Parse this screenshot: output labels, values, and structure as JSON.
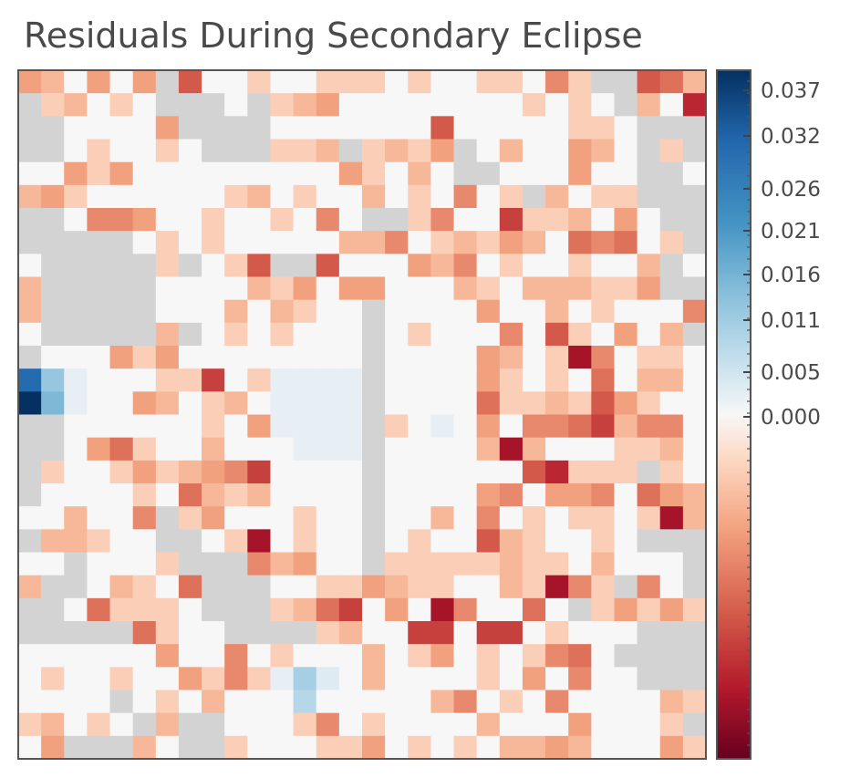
{
  "chart_data": {
    "type": "heatmap",
    "title": "Residuals During Secondary Eclipse",
    "nrows": 30,
    "ncols": 30,
    "colormap": "RdBu",
    "masked_color": "#d3d3d3",
    "colorbar": {
      "orientation": "vertical",
      "placement": "right",
      "ticks": [
        0.0,
        0.005,
        0.011,
        0.016,
        0.021,
        0.026,
        0.032,
        0.037
      ],
      "tick_labels": [
        "0.000",
        "0.005",
        "0.011",
        "0.016",
        "0.021",
        "0.026",
        "0.032",
        "0.037"
      ],
      "scale": "symlog"
    },
    "legend": "null = masked pixel (gray); values are estimated residuals",
    "values": [
      [
        -0.004,
        -0.003,
        0.0,
        -0.004,
        0.0,
        -0.004,
        null,
        -0.007,
        0.0,
        0.0,
        -0.002,
        0.0,
        0.0,
        -0.002,
        -0.002,
        -0.002,
        0.0,
        -0.002,
        0.0,
        0.0,
        -0.002,
        -0.002,
        0.0,
        -0.005,
        -0.002,
        null,
        null,
        -0.007,
        -0.006,
        -0.003
      ],
      [
        null,
        -0.002,
        -0.003,
        0.0,
        -0.002,
        0.0,
        null,
        null,
        null,
        0.0,
        null,
        -0.002,
        -0.003,
        -0.004,
        0.0,
        0.0,
        0.0,
        0.0,
        0.0,
        0.0,
        0.0,
        0.0,
        -0.002,
        0.0,
        -0.002,
        0.0,
        null,
        -0.003,
        0.0,
        -0.009
      ],
      [
        null,
        null,
        0.0,
        0.0,
        0.0,
        0.0,
        -0.004,
        null,
        null,
        null,
        null,
        0.0,
        0.0,
        0.0,
        0.0,
        0.0,
        0.0,
        0.0,
        -0.007,
        0.0,
        0.0,
        0.0,
        0.0,
        0.0,
        -0.002,
        -0.002,
        0.0,
        null,
        null,
        null
      ],
      [
        null,
        null,
        0.0,
        -0.002,
        0.0,
        0.0,
        -0.002,
        0.0,
        null,
        null,
        null,
        -0.002,
        -0.002,
        -0.003,
        null,
        -0.002,
        -0.003,
        -0.002,
        -0.004,
        null,
        0.0,
        -0.003,
        0.0,
        0.0,
        -0.004,
        -0.003,
        0.0,
        null,
        -0.002,
        null
      ],
      [
        0.0,
        0.0,
        -0.004,
        -0.002,
        -0.004,
        0.0,
        0.0,
        0.0,
        0.0,
        0.0,
        0.0,
        0.0,
        0.0,
        0.0,
        -0.004,
        -0.002,
        0.0,
        -0.003,
        0.0,
        null,
        null,
        0.0,
        0.0,
        0.0,
        -0.004,
        0.0,
        0.0,
        null,
        null,
        0.0
      ],
      [
        -0.003,
        -0.004,
        -0.002,
        0.0,
        0.0,
        0.0,
        0.0,
        0.0,
        0.0,
        -0.002,
        -0.003,
        0.0,
        -0.002,
        0.0,
        0.0,
        -0.003,
        0.0,
        -0.002,
        0.0,
        -0.005,
        0.0,
        -0.002,
        null,
        -0.003,
        0.0,
        -0.002,
        -0.002,
        null,
        null,
        null
      ],
      [
        null,
        null,
        0.0,
        -0.005,
        -0.005,
        -0.004,
        0.0,
        0.0,
        -0.002,
        0.0,
        0.0,
        -0.002,
        0.0,
        -0.005,
        0.0,
        null,
        null,
        -0.002,
        -0.005,
        0.0,
        0.0,
        -0.008,
        -0.002,
        -0.002,
        -0.003,
        0.0,
        -0.004,
        0.0,
        null,
        null
      ],
      [
        null,
        null,
        null,
        null,
        null,
        0.0,
        -0.002,
        0.0,
        -0.002,
        0.0,
        0.0,
        0.0,
        0.0,
        0.0,
        -0.003,
        -0.003,
        -0.005,
        0.0,
        -0.002,
        -0.003,
        -0.002,
        -0.004,
        -0.003,
        0.0,
        -0.006,
        -0.005,
        -0.006,
        0.0,
        -0.002,
        null
      ],
      [
        0.0,
        null,
        null,
        null,
        null,
        null,
        -0.002,
        null,
        0.0,
        -0.002,
        -0.007,
        null,
        null,
        -0.007,
        0.0,
        0.0,
        0.0,
        -0.004,
        -0.003,
        -0.005,
        0.0,
        -0.002,
        0.0,
        0.0,
        -0.002,
        0.0,
        0.0,
        -0.003,
        null,
        0.0
      ],
      [
        -0.003,
        null,
        null,
        null,
        null,
        null,
        0.0,
        0.0,
        0.0,
        0.0,
        -0.003,
        -0.002,
        -0.004,
        0.0,
        -0.004,
        -0.004,
        0.0,
        0.0,
        0.0,
        -0.003,
        -0.002,
        0.0,
        -0.003,
        -0.003,
        -0.003,
        -0.002,
        -0.002,
        -0.004,
        null,
        null
      ],
      [
        -0.003,
        null,
        null,
        null,
        null,
        null,
        0.0,
        0.0,
        0.0,
        -0.003,
        0.0,
        -0.003,
        -0.002,
        0.0,
        0.0,
        null,
        0.0,
        0.0,
        0.0,
        0.0,
        -0.004,
        0.0,
        0.0,
        -0.003,
        0.0,
        -0.002,
        0.0,
        0.0,
        0.0,
        -0.005
      ],
      [
        0.0,
        null,
        null,
        null,
        null,
        null,
        -0.003,
        null,
        0.0,
        -0.002,
        0.0,
        -0.002,
        0.0,
        0.0,
        0.0,
        null,
        0.0,
        -0.002,
        0.0,
        0.0,
        0.0,
        -0.005,
        0.0,
        -0.007,
        -0.002,
        0.0,
        -0.004,
        0.0,
        -0.003,
        null
      ],
      [
        null,
        0.0,
        0.0,
        0.0,
        -0.004,
        -0.002,
        -0.004,
        0.0,
        0.0,
        0.0,
        0.0,
        0.0,
        0.0,
        0.0,
        0.0,
        null,
        0.0,
        0.0,
        0.0,
        0.0,
        -0.004,
        -0.003,
        0.0,
        -0.002,
        -0.01,
        -0.005,
        0.0,
        -0.002,
        -0.002,
        0.0
      ],
      [
        0.03,
        0.012,
        0.002,
        0.0,
        0.0,
        0.0,
        -0.002,
        -0.002,
        -0.008,
        0.0,
        -0.002,
        0.002,
        0.002,
        0.002,
        0.002,
        null,
        0.0,
        0.0,
        0.0,
        0.0,
        -0.004,
        -0.002,
        0.0,
        -0.002,
        0.0,
        -0.006,
        0.0,
        -0.003,
        -0.003,
        0.0
      ],
      [
        0.04,
        0.015,
        0.002,
        0.0,
        0.0,
        -0.004,
        -0.003,
        0.0,
        -0.002,
        -0.003,
        0.0,
        0.002,
        0.002,
        0.002,
        0.002,
        null,
        0.0,
        0.0,
        0.0,
        0.0,
        -0.006,
        -0.002,
        -0.002,
        -0.003,
        -0.002,
        -0.007,
        -0.004,
        -0.002,
        0.0,
        0.0
      ],
      [
        null,
        null,
        0.0,
        0.0,
        0.0,
        0.0,
        0.0,
        0.0,
        -0.002,
        0.0,
        -0.004,
        0.002,
        0.002,
        0.002,
        0.002,
        null,
        -0.002,
        0.0,
        0.002,
        0.0,
        -0.004,
        0.0,
        -0.005,
        -0.005,
        -0.006,
        -0.008,
        -0.003,
        -0.005,
        -0.005,
        0.0
      ],
      [
        null,
        null,
        0.0,
        -0.004,
        -0.006,
        -0.002,
        0.0,
        0.0,
        -0.003,
        0.0,
        0.0,
        0.0,
        0.002,
        0.002,
        0.002,
        null,
        0.0,
        0.0,
        0.0,
        0.0,
        -0.003,
        -0.01,
        -0.003,
        0.0,
        0.0,
        0.0,
        -0.002,
        -0.002,
        -0.003,
        0.0
      ],
      [
        null,
        -0.002,
        0.0,
        0.0,
        -0.002,
        -0.004,
        -0.002,
        -0.003,
        -0.004,
        -0.005,
        -0.008,
        0.0,
        0.0,
        0.0,
        0.0,
        null,
        0.0,
        0.0,
        0.0,
        0.0,
        0.0,
        0.0,
        -0.007,
        -0.009,
        -0.002,
        -0.002,
        -0.002,
        null,
        -0.002,
        0.0
      ],
      [
        null,
        0.0,
        0.0,
        0.0,
        0.0,
        -0.002,
        0.0,
        -0.006,
        -0.003,
        -0.002,
        -0.003,
        0.0,
        0.0,
        0.0,
        0.0,
        null,
        0.0,
        0.0,
        0.0,
        0.0,
        -0.004,
        -0.005,
        0.0,
        -0.004,
        -0.004,
        -0.005,
        0.0,
        -0.006,
        -0.004,
        -0.003
      ],
      [
        0.0,
        0.0,
        -0.003,
        0.0,
        0.0,
        -0.005,
        null,
        -0.002,
        -0.004,
        0.0,
        0.0,
        0.0,
        -0.002,
        0.0,
        0.0,
        null,
        0.0,
        0.0,
        -0.003,
        0.0,
        -0.005,
        0.0,
        -0.002,
        0.0,
        -0.002,
        -0.002,
        0.0,
        -0.002,
        -0.01,
        -0.003
      ],
      [
        null,
        -0.003,
        -0.003,
        -0.002,
        0.0,
        0.0,
        null,
        null,
        0.0,
        -0.002,
        -0.01,
        0.0,
        -0.002,
        0.0,
        0.0,
        null,
        0.0,
        -0.002,
        0.0,
        0.0,
        -0.007,
        -0.003,
        -0.002,
        0.0,
        0.0,
        -0.002,
        0.0,
        null,
        null,
        null
      ],
      [
        0.0,
        0.0,
        null,
        0.0,
        0.0,
        0.0,
        -0.002,
        null,
        null,
        null,
        -0.005,
        -0.003,
        -0.004,
        0.0,
        0.0,
        null,
        -0.002,
        -0.002,
        -0.002,
        -0.002,
        -0.002,
        -0.003,
        -0.002,
        -0.002,
        0.0,
        -0.003,
        0.0,
        0.0,
        0.0,
        null
      ],
      [
        -0.003,
        null,
        null,
        0.0,
        -0.003,
        -0.002,
        0.0,
        -0.006,
        null,
        null,
        null,
        0.0,
        0.0,
        -0.002,
        -0.002,
        -0.004,
        -0.003,
        -0.002,
        -0.002,
        0.0,
        0.0,
        -0.003,
        -0.002,
        -0.01,
        -0.005,
        -0.002,
        null,
        -0.005,
        0.0,
        null
      ],
      [
        null,
        null,
        0.0,
        -0.006,
        -0.002,
        -0.002,
        -0.002,
        0.0,
        null,
        null,
        null,
        -0.002,
        -0.003,
        -0.006,
        -0.008,
        0.0,
        -0.004,
        0.0,
        -0.01,
        -0.005,
        0.0,
        0.0,
        -0.006,
        0.0,
        null,
        -0.002,
        -0.004,
        -0.002,
        -0.004,
        -0.002
      ],
      [
        null,
        null,
        null,
        null,
        null,
        -0.006,
        -0.002,
        0.0,
        0.0,
        null,
        null,
        null,
        null,
        -0.002,
        -0.003,
        0.0,
        0.0,
        -0.008,
        -0.008,
        0.0,
        -0.008,
        -0.008,
        0.0,
        -0.002,
        0.0,
        0.0,
        0.0,
        null,
        null,
        null
      ],
      [
        0.0,
        0.0,
        0.0,
        0.0,
        0.0,
        0.0,
        -0.004,
        0.0,
        0.0,
        -0.005,
        0.0,
        -0.002,
        0.0,
        0.0,
        0.0,
        -0.003,
        0.0,
        -0.002,
        -0.004,
        0.0,
        -0.002,
        0.0,
        -0.002,
        -0.005,
        -0.006,
        0.0,
        null,
        null,
        null,
        null
      ],
      [
        0.0,
        -0.002,
        0.0,
        0.0,
        -0.002,
        0.0,
        0.0,
        -0.004,
        -0.002,
        -0.005,
        -0.002,
        0.002,
        0.01,
        0.003,
        0.0,
        -0.003,
        0.0,
        0.0,
        0.0,
        0.0,
        -0.002,
        0.0,
        -0.004,
        0.0,
        -0.005,
        0.0,
        0.0,
        null,
        null,
        null
      ],
      [
        0.0,
        0.0,
        0.0,
        0.0,
        null,
        0.0,
        -0.002,
        0.0,
        -0.003,
        0.0,
        0.0,
        0.0,
        0.008,
        0.0,
        0.0,
        0.0,
        0.0,
        0.0,
        -0.003,
        -0.005,
        0.0,
        -0.002,
        0.0,
        -0.005,
        0.0,
        0.0,
        0.0,
        0.0,
        -0.003,
        -0.002
      ],
      [
        -0.002,
        -0.003,
        0.0,
        -0.002,
        0.0,
        null,
        -0.003,
        null,
        null,
        0.0,
        0.0,
        0.0,
        -0.002,
        -0.005,
        0.0,
        -0.002,
        0.0,
        0.0,
        0.0,
        0.0,
        -0.003,
        0.0,
        0.0,
        0.0,
        -0.004,
        0.0,
        0.0,
        0.0,
        -0.002,
        null
      ],
      [
        0.0,
        -0.004,
        null,
        null,
        null,
        -0.003,
        0.0,
        null,
        null,
        -0.002,
        0.0,
        0.0,
        0.0,
        -0.002,
        -0.002,
        -0.004,
        0.0,
        -0.002,
        0.0,
        -0.002,
        0.0,
        -0.003,
        -0.003,
        -0.004,
        -0.003,
        0.0,
        0.0,
        0.0,
        -0.004,
        -0.002
      ]
    ]
  }
}
